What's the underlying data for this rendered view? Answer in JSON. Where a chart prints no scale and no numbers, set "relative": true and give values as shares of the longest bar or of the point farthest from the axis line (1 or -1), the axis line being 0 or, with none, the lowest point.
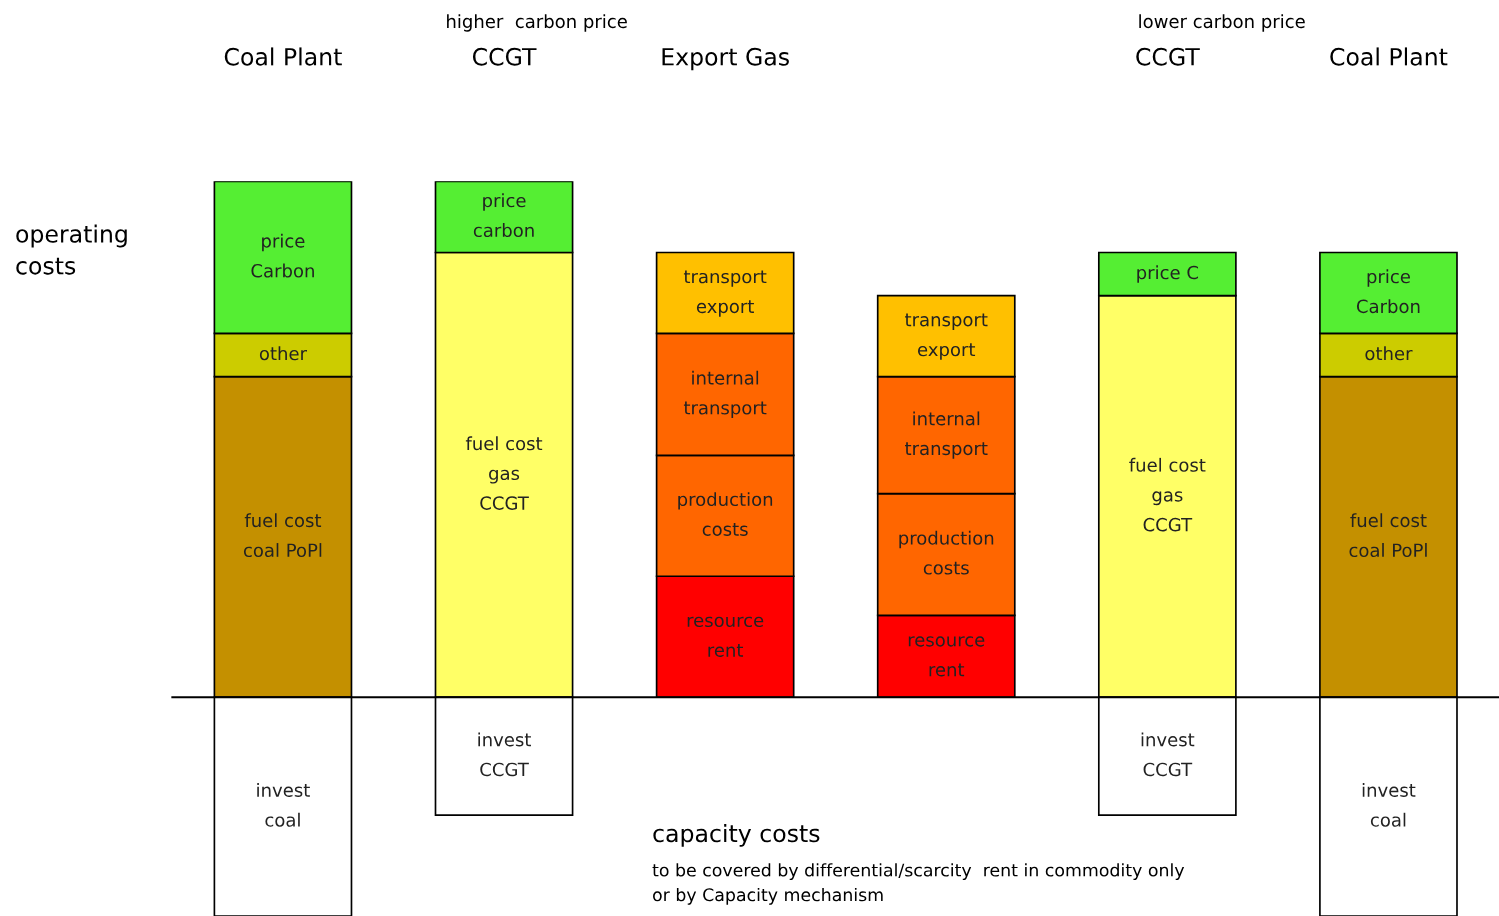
{
  "chart_data": {
    "type": "bar",
    "stacked": true,
    "relative": true,
    "categories": [
      "Coal Plant",
      "CCGT",
      "Export Gas",
      null,
      "CCGT",
      "Coal Plant"
    ],
    "series": [
      {
        "values": [
          0.721,
          1,
          0.272,
          0.184,
          0.903,
          0.721
        ],
        "colors": [
          "#c49000",
          "#ffff66",
          "#ff0000",
          "#ff0000",
          "#ffff66",
          "#c49000"
        ]
      },
      {
        "values": [
          0.097,
          0.16,
          0.272,
          0.274,
          0.097,
          0.097
        ],
        "colors": [
          "#cccc00",
          "#55ee33",
          "#ff6600",
          "#ff6600",
          "#55ee33",
          "#cccc00"
        ]
      },
      {
        "values": [
          0.342,
          null,
          0.274,
          0.263,
          null,
          0.182
        ],
        "colors": [
          "#55ee33",
          null,
          "#ff6600",
          "#ff6600",
          null,
          "#55ee33"
        ]
      },
      {
        "values": [
          null,
          null,
          0.182,
          0.182,
          null,
          null
        ],
        "colors": [
          null,
          null,
          "#ffc000",
          "#ffc000",
          null,
          null
        ]
      },
      {
        "values": [
          -0.492,
          -0.265,
          null,
          null,
          -0.265,
          -0.492
        ],
        "colors": [
          "#ffffff",
          "#ffffff",
          null,
          null,
          "#ffffff",
          "#ffffff"
        ]
      }
    ],
    "annotations": [
      "higher  carbon price",
      "lower carbon price",
      "operating\ncosts",
      "capacity costs",
      "to be covered by differential/scarcity  rent in commodity only\nor by Capacity mechanism",
      "fuel cost\ncoal PoPl",
      "fuel cost\ngas\nCCGT",
      "resource\nrent",
      "resource\nrent",
      "fuel cost\ngas\nCCGT",
      "fuel cost\ncoal PoPl",
      "other",
      "price\ncarbon",
      "production\ncosts",
      "production\ncosts",
      "price C",
      "other",
      "price\nCarbon",
      "internal\ntransport",
      "internal\ntransport",
      "price\nCarbon",
      "transport\nexport",
      "transport\nexport",
      "invest\ncoal",
      "invest\nCCGT",
      "invest\nCCGT",
      "invest\ncoal"
    ]
  }
}
